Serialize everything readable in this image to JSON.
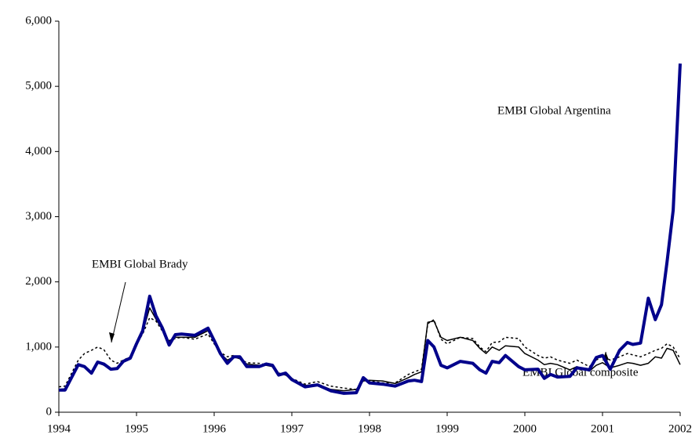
{
  "chart_data": {
    "type": "line",
    "x": [
      1994.0,
      1994.08,
      1994.25,
      1994.33,
      1994.42,
      1994.5,
      1994.58,
      1994.67,
      1994.75,
      1994.83,
      1994.92,
      1995.0,
      1995.08,
      1995.17,
      1995.25,
      1995.33,
      1995.42,
      1995.5,
      1995.58,
      1995.75,
      1995.92,
      1996.0,
      1996.08,
      1996.17,
      1996.25,
      1996.33,
      1996.42,
      1996.58,
      1996.67,
      1996.75,
      1996.83,
      1996.92,
      1997.0,
      1997.17,
      1997.33,
      1997.5,
      1997.67,
      1997.83,
      1997.92,
      1998.0,
      1998.17,
      1998.33,
      1998.5,
      1998.58,
      1998.67,
      1998.75,
      1998.83,
      1998.92,
      1999.0,
      1999.17,
      1999.33,
      1999.42,
      1999.5,
      1999.58,
      1999.67,
      1999.75,
      1999.92,
      2000.0,
      2000.17,
      2000.25,
      2000.33,
      2000.42,
      2000.58,
      2000.67,
      2000.83,
      2000.92,
      2001.0,
      2001.1,
      2001.22,
      2001.32,
      2001.39,
      2001.49,
      2001.59,
      2001.68,
      2001.76,
      2001.83,
      2001.91,
      2002.0
    ],
    "series": [
      {
        "name": "EMBI Global Brady",
        "color": "#000000",
        "dash": true,
        "width": 1.5,
        "values": [
          390,
          400,
          800,
          900,
          950,
          1000,
          960,
          800,
          750,
          800,
          850,
          1050,
          1200,
          1450,
          1400,
          1250,
          1100,
          1130,
          1150,
          1120,
          1200,
          1050,
          920,
          850,
          870,
          820,
          760,
          750,
          730,
          700,
          600,
          580,
          520,
          430,
          470,
          400,
          370,
          350,
          500,
          480,
          450,
          450,
          580,
          620,
          660,
          1360,
          1420,
          1120,
          1050,
          1150,
          1130,
          1000,
          930,
          1070,
          1080,
          1150,
          1130,
          1000,
          870,
          830,
          850,
          800,
          750,
          800,
          700,
          800,
          860,
          800,
          850,
          900,
          880,
          850,
          900,
          950,
          980,
          1050,
          1000,
          820
        ]
      },
      {
        "name": "EMBI Global composite",
        "color": "#000000",
        "dash": false,
        "width": 1.5,
        "values": [
          350,
          360,
          720,
          700,
          620,
          760,
          720,
          660,
          680,
          780,
          830,
          1050,
          1230,
          1600,
          1430,
          1270,
          1080,
          1150,
          1150,
          1150,
          1250,
          1080,
          900,
          800,
          850,
          820,
          740,
          720,
          720,
          700,
          600,
          570,
          510,
          410,
          430,
          350,
          330,
          350,
          480,
          490,
          480,
          440,
          530,
          580,
          620,
          1380,
          1400,
          1150,
          1100,
          1150,
          1100,
          980,
          900,
          1000,
          950,
          1020,
          1000,
          900,
          800,
          730,
          750,
          730,
          650,
          700,
          630,
          720,
          760,
          680,
          720,
          760,
          750,
          720,
          750,
          850,
          830,
          980,
          950,
          730
        ]
      },
      {
        "name": "EMBI Global Argentina",
        "color": "#00008b",
        "dash": false,
        "width": 4,
        "values": [
          340,
          340,
          730,
          700,
          600,
          770,
          740,
          660,
          670,
          780,
          830,
          1050,
          1250,
          1780,
          1480,
          1300,
          1030,
          1190,
          1200,
          1180,
          1290,
          1100,
          900,
          750,
          850,
          850,
          700,
          700,
          740,
          720,
          570,
          600,
          500,
          390,
          420,
          330,
          290,
          300,
          530,
          450,
          430,
          400,
          480,
          490,
          470,
          1100,
          1000,
          720,
          680,
          780,
          750,
          650,
          600,
          780,
          760,
          870,
          700,
          650,
          660,
          520,
          580,
          540,
          550,
          680,
          650,
          840,
          870,
          660,
          950,
          1070,
          1040,
          1060,
          1750,
          1420,
          1650,
          2300,
          3100,
          5350
        ]
      }
    ],
    "xlim": [
      1994,
      2002
    ],
    "ylim": [
      0,
      6000
    ],
    "xticks": [
      1994,
      1995,
      1996,
      1997,
      1998,
      1999,
      2000,
      2001,
      2002
    ],
    "yticks": [
      0,
      {
        "value": 1000,
        "label": "1,000"
      },
      {
        "value": 2000,
        "label": "2,000"
      },
      {
        "value": 3000,
        "label": "3,000"
      },
      {
        "value": 4000,
        "label": "4,000"
      },
      {
        "value": 5000,
        "label": "5,000"
      },
      {
        "value": 6000,
        "label": "6,000"
      }
    ]
  }
}
